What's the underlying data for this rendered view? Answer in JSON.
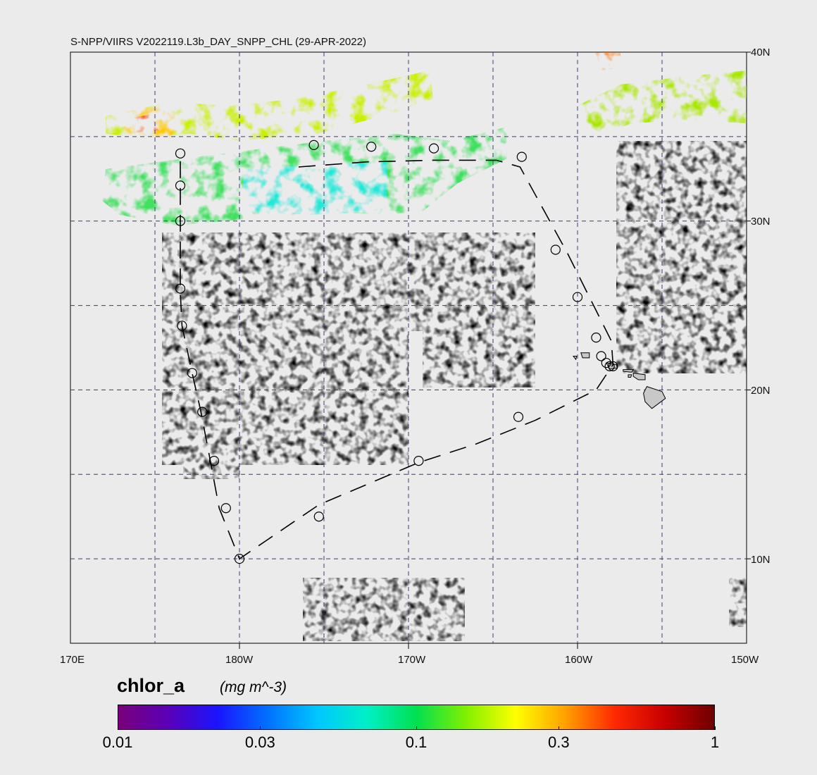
{
  "title": "S-NPP/VIIRS V2022119.L3b_DAY_SNPP_CHL (29-APR-2022)",
  "map": {
    "lat_labels": [
      "40N",
      "30N",
      "20N",
      "10N"
    ],
    "lon_labels": [
      "170E",
      "180W",
      "170W",
      "160W",
      "150W"
    ],
    "land_color": "#c8c8c8",
    "gridline_color": "#3b3b7a",
    "track_label": "",
    "cruise_track": [
      [
        -176.5,
        33.2
      ],
      [
        -172.5,
        33.5
      ],
      [
        -168.5,
        33.6
      ],
      [
        -164.8,
        33.6
      ],
      [
        -163.4,
        33.2
      ],
      [
        -160.6,
        28.1
      ],
      [
        -158.0,
        22.9
      ],
      [
        -157.9,
        21.5
      ],
      [
        -158.9,
        20.0
      ],
      [
        -162.5,
        18.2
      ],
      [
        -166.0,
        16.8
      ],
      [
        -169.4,
        15.7
      ],
      [
        -175.3,
        13.2
      ],
      [
        -180.0,
        10.0
      ],
      [
        -181.2,
        13.0
      ],
      [
        -181.8,
        16.2
      ],
      [
        -182.3,
        18.8
      ],
      [
        -182.8,
        21.0
      ],
      [
        -183.4,
        23.8
      ],
      [
        -183.5,
        25.8
      ],
      [
        -183.5,
        30.0
      ],
      [
        -183.5,
        32.1
      ],
      [
        -183.5,
        34.0
      ]
    ],
    "stations": [
      [
        -183.5,
        34.0
      ],
      [
        -183.5,
        32.1
      ],
      [
        -183.5,
        30.0
      ],
      [
        -183.5,
        26.0
      ],
      [
        -183.4,
        23.8
      ],
      [
        -182.8,
        21.0
      ],
      [
        -182.2,
        18.7
      ],
      [
        -181.5,
        15.8
      ],
      [
        -180.8,
        13.0
      ],
      [
        -180.0,
        10.0
      ],
      [
        -175.3,
        12.5
      ],
      [
        -169.4,
        15.8
      ],
      [
        -163.5,
        18.4
      ],
      [
        -161.3,
        28.3
      ],
      [
        -160.0,
        25.5
      ],
      [
        -158.9,
        23.1
      ],
      [
        -158.6,
        22.0
      ],
      [
        -158.3,
        21.6
      ],
      [
        -158.1,
        21.4
      ],
      [
        -157.9,
        21.4
      ],
      [
        -163.3,
        33.8
      ],
      [
        -168.5,
        34.3
      ],
      [
        -172.2,
        34.4
      ],
      [
        -175.6,
        34.5
      ]
    ]
  },
  "colorbar": {
    "label": "chlor_a",
    "units": "(mg m^-3)",
    "ticks": [
      "0.01",
      "0.03",
      "0.1",
      "0.3",
      "1"
    ],
    "tick_values": [
      0.01,
      0.03,
      0.1,
      0.3,
      1
    ],
    "range": [
      0.01,
      1
    ],
    "scale": "log",
    "colors": [
      "#7a007a",
      "#5a00b8",
      "#1b14ff",
      "#0070ff",
      "#00c6ff",
      "#00f0c8",
      "#00e050",
      "#80f000",
      "#ffff00",
      "#ffa000",
      "#ff2800",
      "#c80000",
      "#6e0000"
    ]
  }
}
